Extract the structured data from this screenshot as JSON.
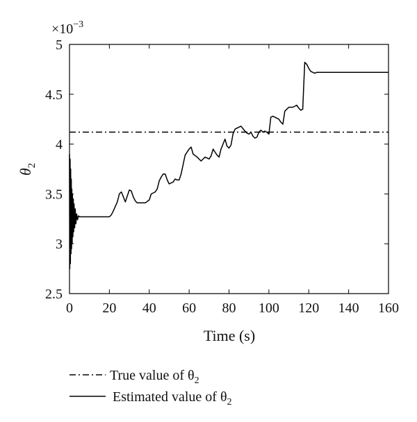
{
  "chart_data": {
    "type": "line",
    "title": "",
    "xlabel": "Time (s)",
    "ylabel": "θ",
    "ylabel_subscript": "2",
    "y_scale_prefix": "×10",
    "y_scale_exponent": "−3",
    "xlim": [
      0,
      160
    ],
    "ylim": [
      2.5,
      5
    ],
    "x_ticks": [
      0,
      20,
      40,
      60,
      80,
      100,
      120,
      140,
      160
    ],
    "x_tick_labels": [
      "0",
      "20",
      "40",
      "60",
      "80",
      "100",
      "120",
      "140",
      "160"
    ],
    "y_ticks": [
      2.5,
      3,
      3.5,
      4,
      4.5,
      5
    ],
    "y_tick_labels": [
      "2.5",
      "3",
      "3.5",
      "4",
      "4.5",
      "5"
    ],
    "grid": false,
    "legend_position": "below",
    "series": [
      {
        "name": "True value of θ2",
        "legend_text": "True value of θ",
        "legend_subscript": "2",
        "style": "dash-dot",
        "x": [
          0,
          160
        ],
        "y": [
          4.12,
          4.12
        ]
      },
      {
        "name": "Estimated value of θ2",
        "legend_text": "Estimated value of θ",
        "legend_subscript": "2",
        "style": "solid",
        "x": [
          0,
          0.15,
          0.3,
          0.45,
          0.6,
          0.75,
          0.9,
          1.05,
          1.2,
          1.35,
          1.5,
          1.7,
          1.9,
          2.1,
          2.3,
          2.6,
          2.9,
          3.2,
          3.6,
          4.0,
          4.5,
          5,
          8,
          12,
          16,
          20,
          21,
          22,
          24,
          25,
          26,
          27,
          28,
          29,
          30,
          31,
          32,
          33,
          34,
          35,
          36,
          38,
          40,
          41,
          42,
          43,
          44,
          45,
          46,
          47,
          48,
          49,
          50,
          52,
          53,
          54,
          55,
          56,
          58,
          60,
          61,
          62,
          64,
          66,
          67,
          68,
          70,
          71,
          72,
          73,
          74,
          75,
          76,
          77,
          78,
          79,
          80,
          81,
          82,
          83,
          84,
          85,
          86,
          88,
          89,
          90,
          91,
          92,
          93,
          94,
          95,
          96,
          97,
          98,
          99,
          100,
          101,
          102,
          103,
          104,
          105,
          106,
          107,
          108,
          109,
          110,
          111,
          112,
          113,
          114,
          115,
          116,
          117,
          117.5,
          118,
          119,
          120,
          121,
          122,
          123,
          124,
          126,
          130,
          140,
          150,
          160
        ],
        "y": [
          3.9,
          2.75,
          3.85,
          2.8,
          3.75,
          2.9,
          3.65,
          2.95,
          3.55,
          3.0,
          3.5,
          3.07,
          3.45,
          3.12,
          3.4,
          3.16,
          3.35,
          3.2,
          3.3,
          3.24,
          3.28,
          3.27,
          3.27,
          3.27,
          3.27,
          3.27,
          3.29,
          3.33,
          3.42,
          3.5,
          3.52,
          3.47,
          3.42,
          3.48,
          3.54,
          3.53,
          3.47,
          3.43,
          3.41,
          3.41,
          3.41,
          3.41,
          3.44,
          3.5,
          3.51,
          3.52,
          3.55,
          3.63,
          3.67,
          3.7,
          3.7,
          3.64,
          3.6,
          3.62,
          3.65,
          3.64,
          3.64,
          3.7,
          3.89,
          3.95,
          3.97,
          3.9,
          3.87,
          3.83,
          3.85,
          3.87,
          3.85,
          3.88,
          3.95,
          3.92,
          3.89,
          3.87,
          3.95,
          4.0,
          4.05,
          3.98,
          3.96,
          3.99,
          4.1,
          4.15,
          4.16,
          4.17,
          4.18,
          4.13,
          4.11,
          4.1,
          4.12,
          4.08,
          4.06,
          4.07,
          4.12,
          4.14,
          4.12,
          4.13,
          4.12,
          4.1,
          4.27,
          4.28,
          4.27,
          4.26,
          4.25,
          4.22,
          4.2,
          4.33,
          4.35,
          4.37,
          4.37,
          4.37,
          4.38,
          4.39,
          4.36,
          4.34,
          4.35,
          4.6,
          4.82,
          4.8,
          4.76,
          4.73,
          4.72,
          4.71,
          4.72,
          4.72,
          4.72,
          4.72,
          4.72,
          4.72
        ]
      }
    ]
  }
}
